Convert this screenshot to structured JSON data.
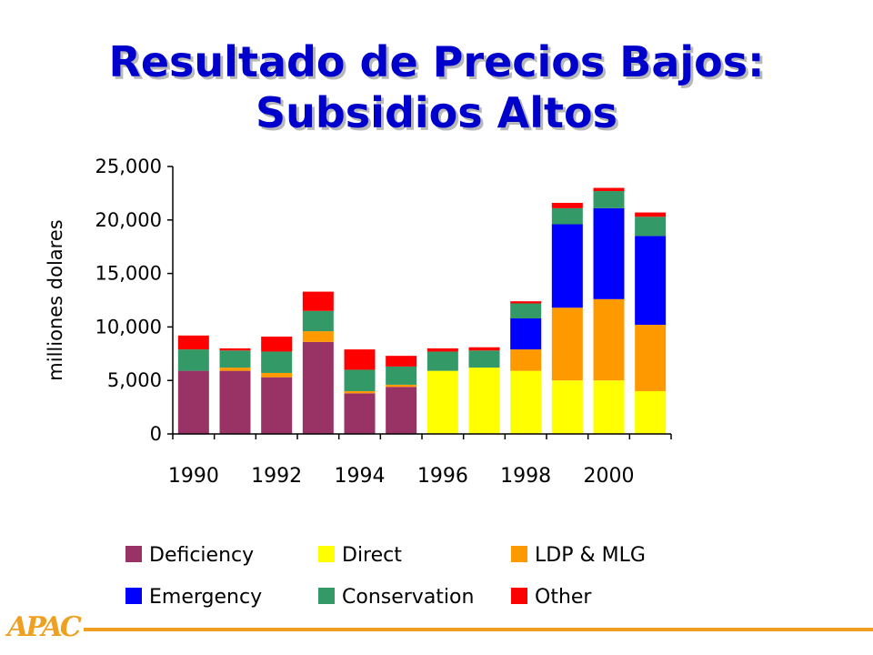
{
  "slide": {
    "title_line1": "Resultado de Precios Bajos:",
    "title_line2": "Subsidios Altos",
    "logo_text": "APAC"
  },
  "colors": {
    "title": "#0000cc",
    "accent": "#f0a020"
  },
  "chart_data": {
    "type": "bar",
    "stacked": true,
    "ylabel": "milliones dolares",
    "xlabel": "",
    "ylim": [
      0,
      25000
    ],
    "yticks": [
      0,
      5000,
      10000,
      15000,
      20000,
      25000
    ],
    "ytick_labels": [
      "0",
      "5,000",
      "10,000",
      "15,000",
      "20,000",
      "25,000"
    ],
    "categories": [
      "1990",
      "1991",
      "1992",
      "1993",
      "1994",
      "1995",
      "1996",
      "1997",
      "1998",
      "1999",
      "2000",
      "2001"
    ],
    "xtick_labels": [
      "1990",
      "",
      "1992",
      "",
      "1994",
      "",
      "1996",
      "",
      "1998",
      "",
      "2000",
      ""
    ],
    "legend_position": "bottom",
    "grid": false,
    "series": [
      {
        "name": "Deficiency",
        "color": "#993366",
        "values": [
          5900,
          5900,
          5300,
          8600,
          3800,
          4400,
          0,
          0,
          0,
          0,
          0,
          0
        ]
      },
      {
        "name": "Direct",
        "color": "#ffff00",
        "values": [
          0,
          0,
          0,
          0,
          0,
          0,
          5900,
          6200,
          5900,
          5000,
          5000,
          4000
        ]
      },
      {
        "name": "LDP & MLG",
        "color": "#ff9900",
        "values": [
          0,
          300,
          400,
          1000,
          200,
          200,
          0,
          0,
          2000,
          6800,
          7600,
          6200
        ]
      },
      {
        "name": "Emergency",
        "color": "#0000ff",
        "values": [
          0,
          0,
          0,
          0,
          0,
          0,
          0,
          0,
          2900,
          7800,
          8500,
          8300
        ]
      },
      {
        "name": "Conservation",
        "color": "#339966",
        "values": [
          2000,
          1600,
          2000,
          1900,
          2000,
          1700,
          1800,
          1600,
          1400,
          1500,
          1600,
          1800
        ]
      },
      {
        "name": "Other",
        "color": "#ff0000",
        "values": [
          1300,
          200,
          1400,
          1800,
          1900,
          1000,
          300,
          300,
          200,
          500,
          300,
          400
        ]
      }
    ]
  }
}
